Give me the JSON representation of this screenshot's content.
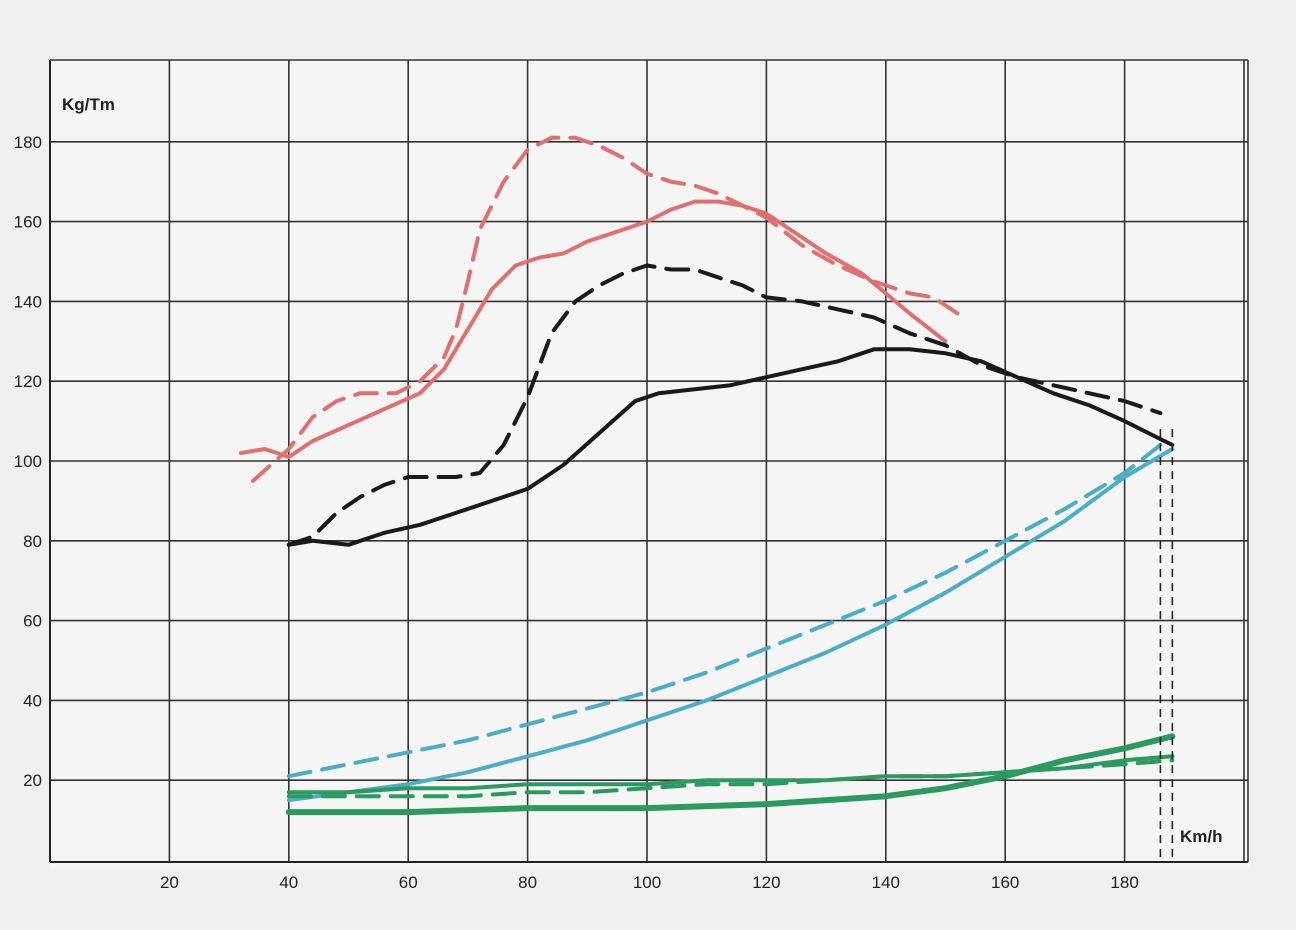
{
  "chart_data": {
    "type": "line",
    "title": "",
    "xlabel": "Km/h",
    "ylabel": "Kg/Tm",
    "xlim": [
      0,
      200
    ],
    "ylim": [
      0,
      200
    ],
    "x_ticks": [
      20,
      40,
      60,
      80,
      100,
      120,
      140,
      160,
      180
    ],
    "y_ticks": [
      20,
      40,
      60,
      80,
      100,
      120,
      140,
      160,
      180
    ],
    "grid": true,
    "legend": "none",
    "max_speed_marks": [
      186,
      188
    ],
    "series": [
      {
        "color": "#e07070",
        "style": "solid",
        "width": 4,
        "points": [
          [
            32,
            102
          ],
          [
            36,
            103
          ],
          [
            40,
            101
          ],
          [
            44,
            105
          ],
          [
            50,
            109
          ],
          [
            56,
            113
          ],
          [
            62,
            117
          ],
          [
            66,
            123
          ],
          [
            70,
            133
          ],
          [
            74,
            143
          ],
          [
            78,
            149
          ],
          [
            82,
            151
          ],
          [
            86,
            152
          ],
          [
            90,
            155
          ],
          [
            96,
            158
          ],
          [
            100,
            160
          ],
          [
            104,
            163
          ],
          [
            108,
            165
          ],
          [
            112,
            165
          ],
          [
            116,
            164
          ],
          [
            120,
            162
          ],
          [
            124,
            158
          ],
          [
            130,
            152
          ],
          [
            136,
            147
          ],
          [
            140,
            142
          ],
          [
            144,
            137
          ],
          [
            150,
            130
          ]
        ]
      },
      {
        "color": "#e07070",
        "style": "dashed",
        "width": 4,
        "points": [
          [
            34,
            95
          ],
          [
            40,
            103
          ],
          [
            44,
            111
          ],
          [
            48,
            115
          ],
          [
            52,
            117
          ],
          [
            58,
            117
          ],
          [
            62,
            120
          ],
          [
            66,
            126
          ],
          [
            68,
            133
          ],
          [
            70,
            145
          ],
          [
            72,
            158
          ],
          [
            76,
            170
          ],
          [
            80,
            178
          ],
          [
            84,
            181
          ],
          [
            88,
            181
          ],
          [
            92,
            179
          ],
          [
            96,
            176
          ],
          [
            100,
            172
          ],
          [
            104,
            170
          ],
          [
            108,
            169
          ],
          [
            112,
            167
          ],
          [
            116,
            164
          ],
          [
            120,
            161
          ],
          [
            126,
            154
          ],
          [
            132,
            149
          ],
          [
            138,
            145
          ],
          [
            144,
            142
          ],
          [
            148,
            141
          ],
          [
            152,
            137
          ]
        ]
      },
      {
        "color": "#1a1a1a",
        "style": "solid",
        "width": 4,
        "points": [
          [
            40,
            79
          ],
          [
            44,
            80
          ],
          [
            50,
            79
          ],
          [
            56,
            82
          ],
          [
            62,
            84
          ],
          [
            68,
            87
          ],
          [
            74,
            90
          ],
          [
            80,
            93
          ],
          [
            86,
            99
          ],
          [
            92,
            107
          ],
          [
            98,
            115
          ],
          [
            102,
            117
          ],
          [
            108,
            118
          ],
          [
            114,
            119
          ],
          [
            120,
            121
          ],
          [
            126,
            123
          ],
          [
            132,
            125
          ],
          [
            138,
            128
          ],
          [
            144,
            128
          ],
          [
            150,
            127
          ],
          [
            156,
            125
          ],
          [
            162,
            121
          ],
          [
            168,
            117
          ],
          [
            174,
            114
          ],
          [
            180,
            110
          ],
          [
            184,
            107
          ],
          [
            188,
            104
          ]
        ]
      },
      {
        "color": "#1a1a1a",
        "style": "dashed",
        "width": 4,
        "points": [
          [
            40,
            79
          ],
          [
            44,
            81
          ],
          [
            48,
            87
          ],
          [
            52,
            91
          ],
          [
            56,
            94
          ],
          [
            60,
            96
          ],
          [
            64,
            96
          ],
          [
            68,
            96
          ],
          [
            72,
            97
          ],
          [
            76,
            104
          ],
          [
            80,
            116
          ],
          [
            84,
            132
          ],
          [
            88,
            140
          ],
          [
            92,
            144
          ],
          [
            96,
            147
          ],
          [
            100,
            149
          ],
          [
            104,
            148
          ],
          [
            108,
            148
          ],
          [
            112,
            146
          ],
          [
            116,
            144
          ],
          [
            120,
            141
          ],
          [
            126,
            140
          ],
          [
            132,
            138
          ],
          [
            138,
            136
          ],
          [
            144,
            132
          ],
          [
            150,
            129
          ],
          [
            156,
            124
          ],
          [
            162,
            121
          ],
          [
            168,
            119
          ],
          [
            174,
            117
          ],
          [
            180,
            115
          ],
          [
            186,
            112
          ]
        ]
      },
      {
        "color": "#4aaec6",
        "style": "solid",
        "width": 4,
        "points": [
          [
            40,
            15
          ],
          [
            50,
            17
          ],
          [
            60,
            19
          ],
          [
            70,
            22
          ],
          [
            80,
            26
          ],
          [
            90,
            30
          ],
          [
            100,
            35
          ],
          [
            110,
            40
          ],
          [
            120,
            46
          ],
          [
            130,
            52
          ],
          [
            140,
            59
          ],
          [
            150,
            67
          ],
          [
            160,
            76
          ],
          [
            170,
            85
          ],
          [
            180,
            96
          ],
          [
            188,
            103
          ]
        ]
      },
      {
        "color": "#4aaec6",
        "style": "dashed",
        "width": 4,
        "points": [
          [
            40,
            21
          ],
          [
            50,
            24
          ],
          [
            60,
            27
          ],
          [
            70,
            30
          ],
          [
            80,
            34
          ],
          [
            90,
            38
          ],
          [
            100,
            42
          ],
          [
            110,
            47
          ],
          [
            120,
            53
          ],
          [
            130,
            59
          ],
          [
            140,
            65
          ],
          [
            150,
            72
          ],
          [
            160,
            80
          ],
          [
            170,
            88
          ],
          [
            180,
            97
          ],
          [
            186,
            104
          ]
        ]
      },
      {
        "color": "#2a9a60",
        "style": "solid",
        "width": 6,
        "points": [
          [
            40,
            12
          ],
          [
            60,
            12
          ],
          [
            80,
            13
          ],
          [
            100,
            13
          ],
          [
            120,
            14
          ],
          [
            140,
            16
          ],
          [
            150,
            18
          ],
          [
            160,
            21
          ],
          [
            170,
            25
          ],
          [
            180,
            28
          ],
          [
            188,
            31
          ]
        ]
      },
      {
        "color": "#2a9a60",
        "style": "solid",
        "width": 4,
        "points": [
          [
            40,
            17
          ],
          [
            50,
            17
          ],
          [
            60,
            18
          ],
          [
            70,
            18
          ],
          [
            80,
            19
          ],
          [
            90,
            19
          ],
          [
            100,
            19
          ],
          [
            110,
            20
          ],
          [
            120,
            20
          ],
          [
            130,
            20
          ],
          [
            140,
            21
          ],
          [
            150,
            21
          ],
          [
            160,
            22
          ],
          [
            170,
            23
          ],
          [
            180,
            25
          ],
          [
            188,
            26
          ]
        ]
      },
      {
        "color": "#2a9a60",
        "style": "dashed",
        "width": 4,
        "points": [
          [
            40,
            16
          ],
          [
            50,
            16
          ],
          [
            60,
            16
          ],
          [
            70,
            16
          ],
          [
            80,
            17
          ],
          [
            90,
            17
          ],
          [
            100,
            18
          ],
          [
            110,
            19
          ],
          [
            120,
            19
          ],
          [
            130,
            20
          ],
          [
            140,
            21
          ],
          [
            150,
            21
          ],
          [
            160,
            22
          ],
          [
            170,
            23
          ],
          [
            180,
            24
          ],
          [
            188,
            25
          ]
        ]
      }
    ]
  }
}
